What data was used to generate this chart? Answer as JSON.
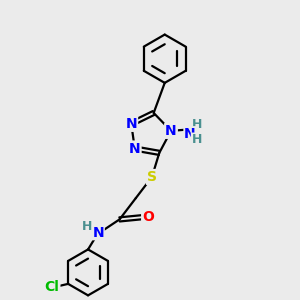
{
  "background_color": "#ebebeb",
  "atom_colors": {
    "N": "#0000ff",
    "O": "#ff0000",
    "S": "#cccc00",
    "Cl": "#00bb00",
    "C": "#000000",
    "H": "#4a9090"
  },
  "bond_color": "#000000",
  "bond_width": 1.6,
  "font_size_atoms": 10,
  "figsize": [
    3.0,
    3.0
  ],
  "dpi": 100
}
